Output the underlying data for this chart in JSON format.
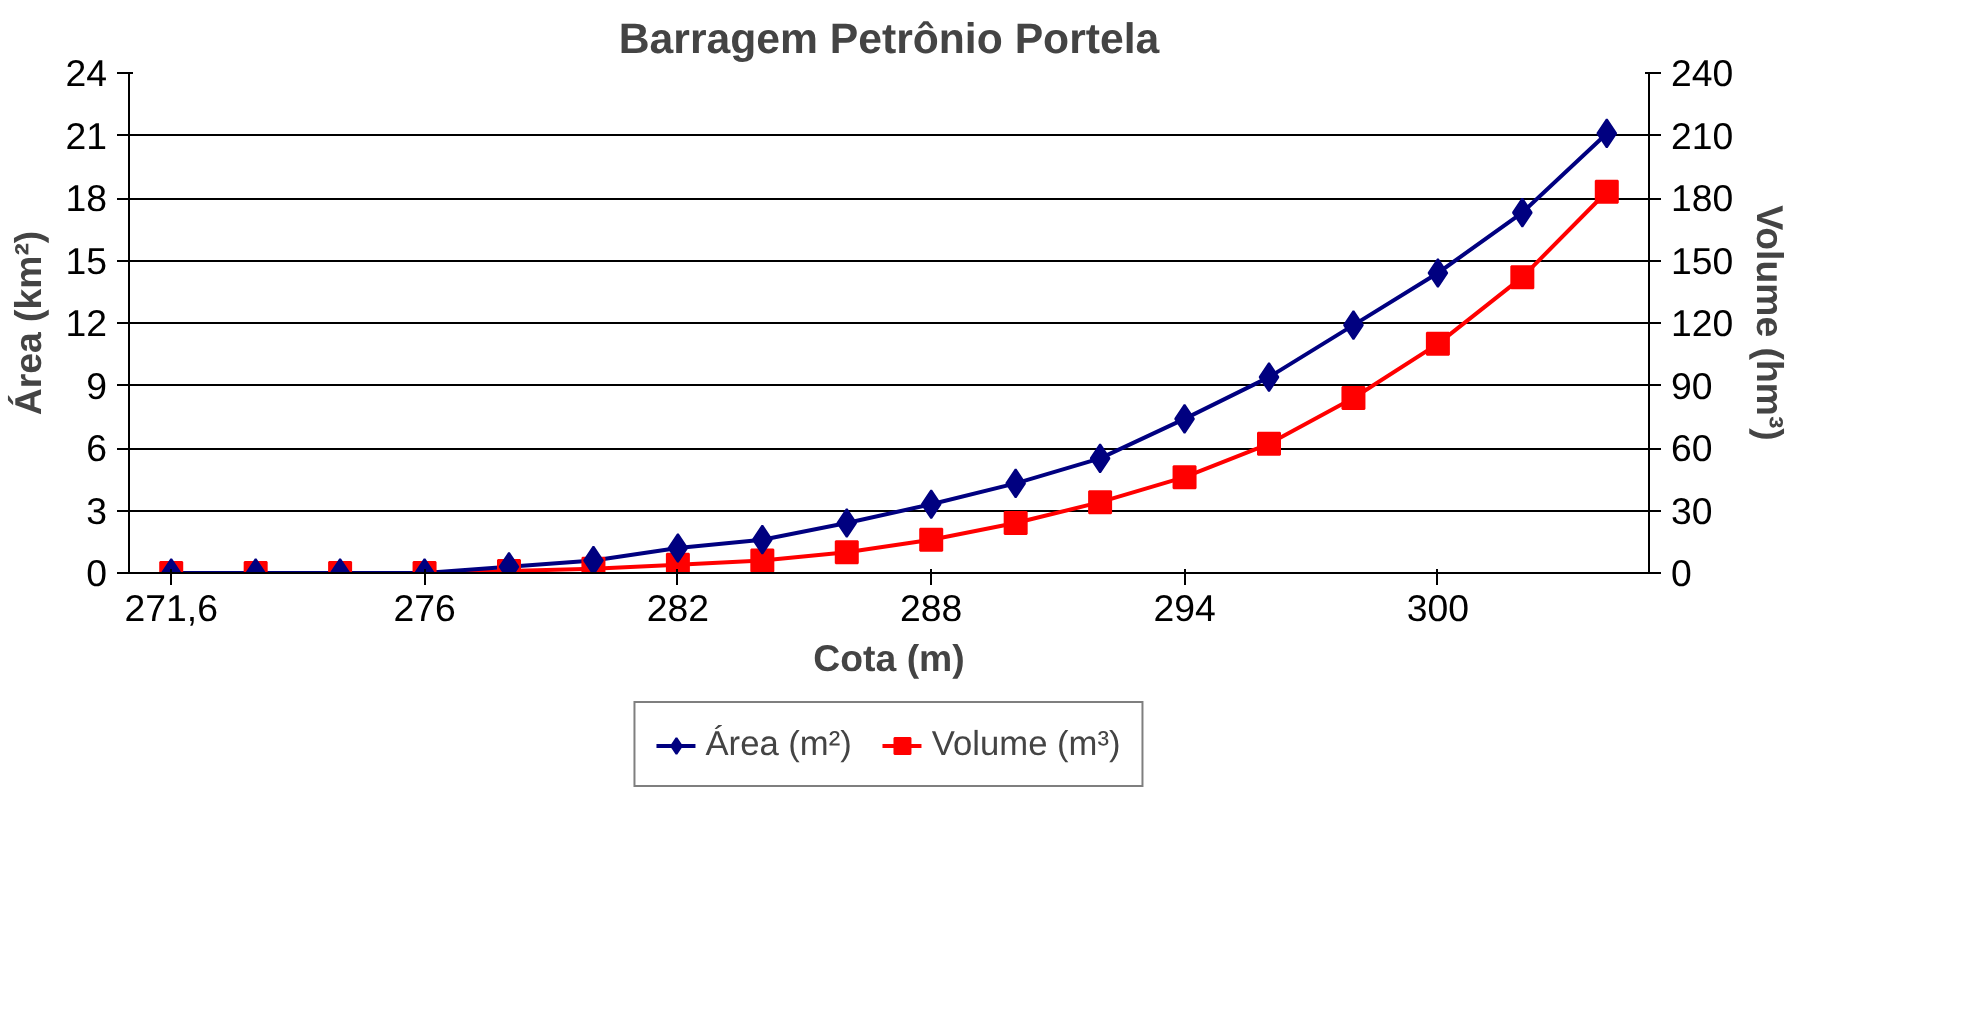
{
  "chart_data": {
    "type": "line",
    "title": "Barragem Petrônio Portela",
    "xlabel": "Cota (m)",
    "ylabel": "Área (km²)",
    "y2label": "Volume (hm³)",
    "categories": [
      "271,6",
      null,
      null,
      "276",
      null,
      null,
      "282",
      null,
      null,
      "288",
      null,
      null,
      "294",
      null,
      null,
      "300",
      null,
      null
    ],
    "series": [
      {
        "name": "Área (m²)",
        "color": "#000080",
        "marker": "diamond",
        "values": [
          0,
          0,
          0,
          0,
          0.3,
          0.6,
          1.2,
          1.6,
          2.4,
          3.3,
          4.3,
          5.5,
          7.4,
          9.4,
          11.9,
          14.4,
          17.3,
          21.1
        ]
      },
      {
        "name": "Volume (m³)",
        "color": "#ff0000",
        "marker": "square",
        "axis": "y2",
        "values": [
          0,
          0,
          0,
          0,
          1,
          2,
          4,
          6,
          10,
          16,
          24,
          34,
          46,
          62,
          84,
          110,
          142,
          183
        ]
      }
    ],
    "ylim": [
      0,
      24
    ],
    "yticks": [
      0,
      3,
      6,
      9,
      12,
      15,
      18,
      21,
      24
    ],
    "y2lim": [
      0,
      240
    ],
    "y2ticks": [
      0,
      30,
      60,
      90,
      120,
      150,
      180,
      210,
      240
    ],
    "grid": "y",
    "legend": "bottom",
    "line_style": "solid"
  }
}
